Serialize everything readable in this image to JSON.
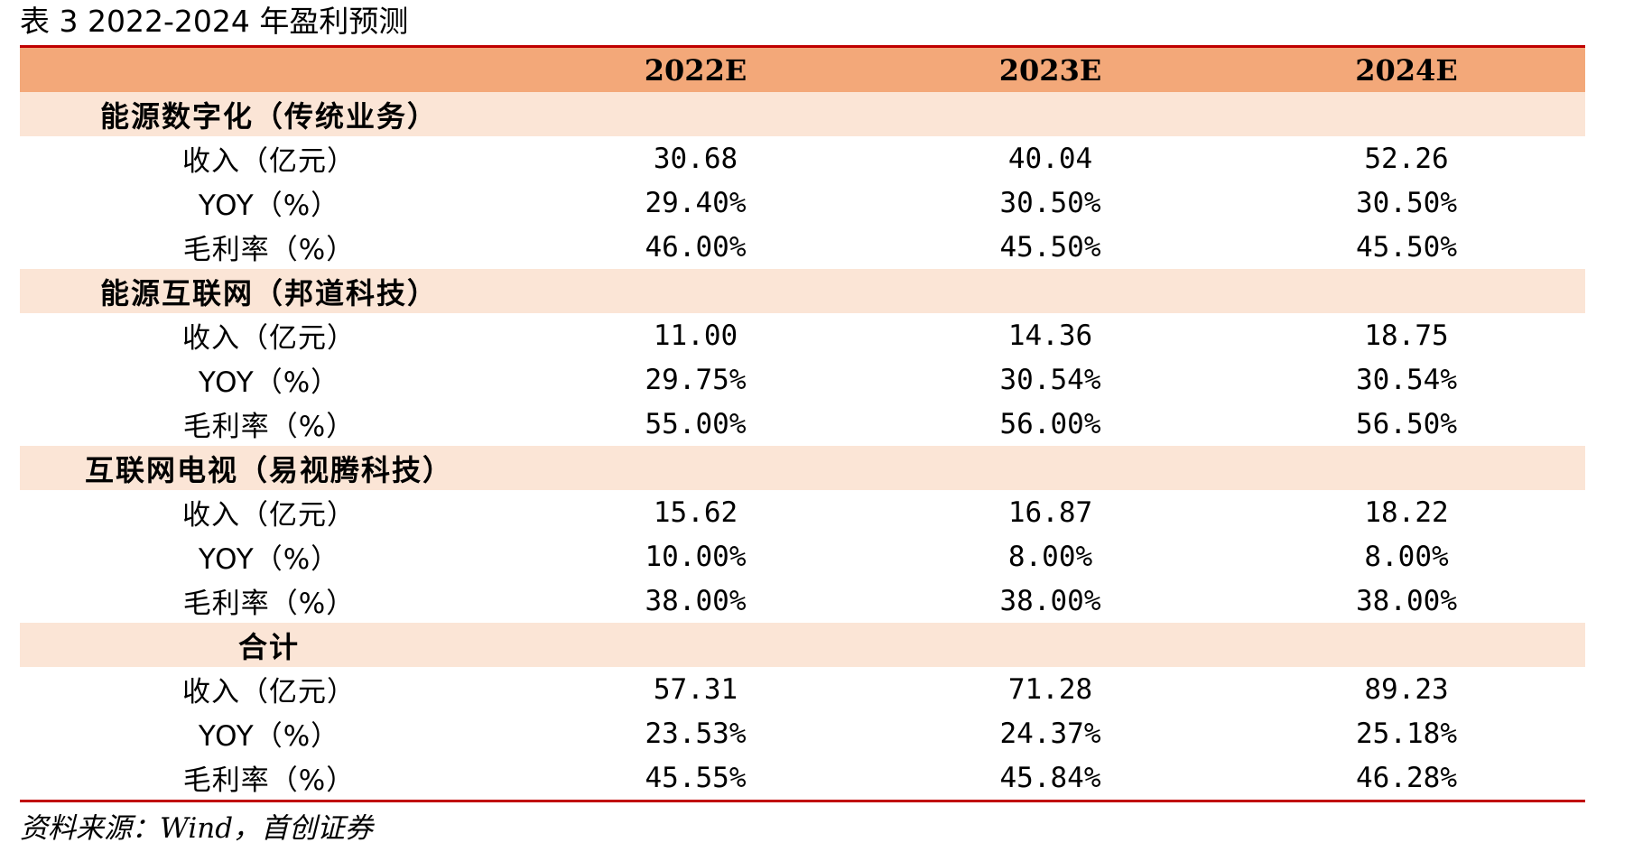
{
  "title": "表 3 2022-2024 年盈利预测",
  "table": {
    "columns": [
      "",
      "2022E",
      "2023E",
      "2024E"
    ],
    "sections": [
      {
        "name": "能源数字化（传统业务）",
        "rows": [
          {
            "label": "收入（亿元）",
            "values": [
              "30.68",
              "40.04",
              "52.26"
            ]
          },
          {
            "label": "YOY（%）",
            "values": [
              "29.40%",
              "30.50%",
              "30.50%"
            ]
          },
          {
            "label": "毛利率（%）",
            "values": [
              "46.00%",
              "45.50%",
              "45.50%"
            ]
          }
        ]
      },
      {
        "name": "能源互联网（邦道科技）",
        "rows": [
          {
            "label": "收入（亿元）",
            "values": [
              "11.00",
              "14.36",
              "18.75"
            ]
          },
          {
            "label": "YOY（%）",
            "values": [
              "29.75%",
              "30.54%",
              "30.54%"
            ]
          },
          {
            "label": "毛利率（%）",
            "values": [
              "55.00%",
              "56.00%",
              "56.50%"
            ]
          }
        ]
      },
      {
        "name": "互联网电视（易视腾科技）",
        "rows": [
          {
            "label": "收入（亿元）",
            "values": [
              "15.62",
              "16.87",
              "18.22"
            ]
          },
          {
            "label": "YOY（%）",
            "values": [
              "10.00%",
              "8.00%",
              "8.00%"
            ]
          },
          {
            "label": "毛利率（%）",
            "values": [
              "38.00%",
              "38.00%",
              "38.00%"
            ]
          }
        ]
      },
      {
        "name": "合计",
        "rows": [
          {
            "label": "收入（亿元）",
            "values": [
              "57.31",
              "71.28",
              "89.23"
            ]
          },
          {
            "label": "YOY（%）",
            "values": [
              "23.53%",
              "24.37%",
              "25.18%"
            ]
          },
          {
            "label": "毛利率（%）",
            "values": [
              "45.55%",
              "45.84%",
              "46.28%"
            ]
          }
        ]
      }
    ]
  },
  "source": "资料来源：Wind，首创证券",
  "colors": {
    "rule": "#c00000",
    "header_bg": "#f3a879",
    "section_bg": "#fbe5d6"
  }
}
